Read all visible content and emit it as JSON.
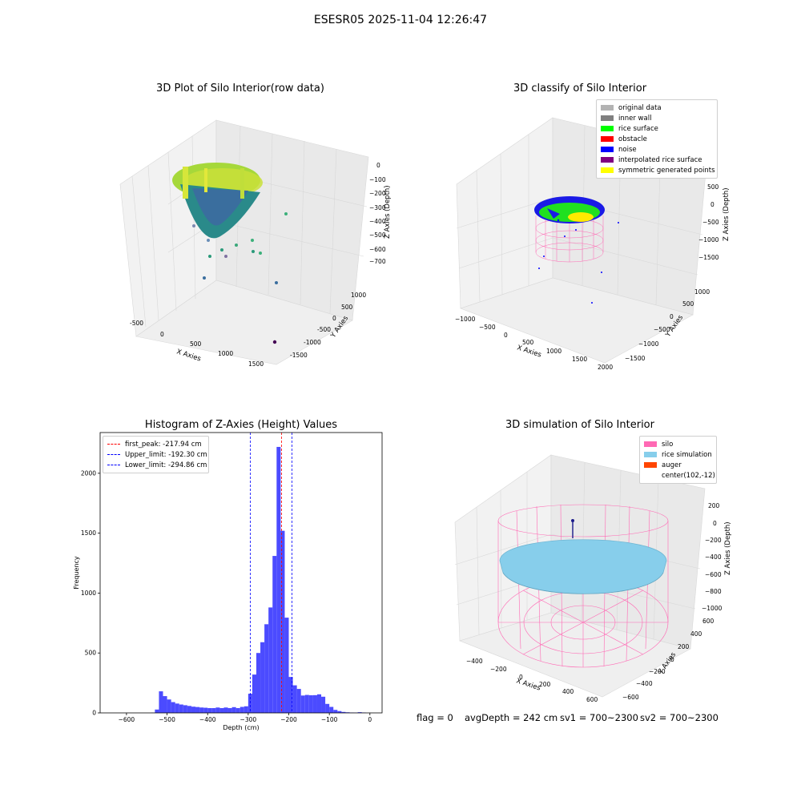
{
  "suptitle": "ESESR05 2025-11-04 12:26:47",
  "footer": {
    "flag": "flag = 0",
    "avg_depth": "avgDepth = 242 cm",
    "sv1": "sv1 = 700~2300",
    "sv2": "sv2 = 700~2300"
  },
  "colors": {
    "hist_bar": "#4b4bff",
    "first_peak": "#ff0000",
    "limits": "#0000ff",
    "silo": "#ff69b4",
    "rice": "#87ceeb",
    "auger": "#ff4500"
  },
  "plot1": {
    "title": "3D Plot of Silo Interior(row data)",
    "xlabel": "X Axies",
    "ylabel": "Y Axies",
    "zlabel": "Z Axies (Depth)",
    "xticks": [
      "-500",
      "0",
      "500",
      "1000",
      "1500"
    ],
    "yticks": [
      "1000",
      "500",
      "0",
      "-500",
      "-1000",
      "-1500"
    ],
    "zticks": [
      "0",
      "−100",
      "−200",
      "−300",
      "−400",
      "−500",
      "−600",
      "−700"
    ]
  },
  "plot2": {
    "title": "3D classify of Silo Interior",
    "xlabel": "X Axies",
    "ylabel": "Y Axies",
    "zlabel": "Z Axies (Depth)",
    "xticks": [
      "−1000",
      "−500",
      "0",
      "500",
      "1000",
      "1500",
      "2000"
    ],
    "yticks": [
      "1000",
      "500",
      "0",
      "−500",
      "−1000",
      "−1500"
    ],
    "zticks": [
      "500",
      "0",
      "−500",
      "−1000",
      "−1500"
    ],
    "legend": [
      {
        "label": "original data",
        "color": "#b3b3b3"
      },
      {
        "label": "inner wall",
        "color": "#808080"
      },
      {
        "label": "rice surface",
        "color": "#00ff00"
      },
      {
        "label": "obstacle",
        "color": "#ff0000"
      },
      {
        "label": "noise",
        "color": "#0000ff"
      },
      {
        "label": "interpolated rice surface",
        "color": "#800080"
      },
      {
        "label": "symmetric generated points",
        "color": "#ffff00"
      }
    ]
  },
  "plot4": {
    "title": "3D simulation of Silo Interior",
    "xlabel": "X Axies",
    "ylabel": "Y Axies",
    "zlabel": "Z Axies (Depth)",
    "xticks": [
      "−400",
      "−200",
      "0",
      "200",
      "400",
      "600"
    ],
    "yticks": [
      "600",
      "400",
      "200",
      "0",
      "−200",
      "−400",
      "−600"
    ],
    "zticks": [
      "200",
      "0",
      "−200",
      "−400",
      "−600",
      "−800",
      "−1000"
    ],
    "legend": [
      {
        "label": "silo",
        "color": "#ff69b4"
      },
      {
        "label": "rice simulation",
        "color": "#87ceeb"
      },
      {
        "label": "auger",
        "color": "#ff4500"
      },
      {
        "label": "center(102,-12)",
        "color": ""
      }
    ]
  },
  "chart_data": {
    "type": "bar",
    "title": "Histogram of Z-Axies (Height) Values",
    "xlabel": "Depth (cm)",
    "ylabel": "Frequency",
    "xlim": [
      -665,
      30
    ],
    "ylim": [
      0,
      2340
    ],
    "xticks": [
      -600,
      -500,
      -400,
      -300,
      -200,
      -100,
      0
    ],
    "yticks": [
      0,
      500,
      1000,
      1500,
      2000
    ],
    "bin_width": 10,
    "bins": [
      {
        "x": -535,
        "v": 2
      },
      {
        "x": -525,
        "v": 28
      },
      {
        "x": -515,
        "v": 180
      },
      {
        "x": -505,
        "v": 140
      },
      {
        "x": -495,
        "v": 112
      },
      {
        "x": -485,
        "v": 90
      },
      {
        "x": -475,
        "v": 78
      },
      {
        "x": -465,
        "v": 70
      },
      {
        "x": -455,
        "v": 64
      },
      {
        "x": -445,
        "v": 58
      },
      {
        "x": -435,
        "v": 52
      },
      {
        "x": -425,
        "v": 49
      },
      {
        "x": -415,
        "v": 45
      },
      {
        "x": -405,
        "v": 43
      },
      {
        "x": -395,
        "v": 40
      },
      {
        "x": -385,
        "v": 40
      },
      {
        "x": -375,
        "v": 45
      },
      {
        "x": -365,
        "v": 40
      },
      {
        "x": -355,
        "v": 45
      },
      {
        "x": -345,
        "v": 40
      },
      {
        "x": -335,
        "v": 48
      },
      {
        "x": -325,
        "v": 40
      },
      {
        "x": -315,
        "v": 50
      },
      {
        "x": -305,
        "v": 55
      },
      {
        "x": -295,
        "v": 160
      },
      {
        "x": -285,
        "v": 320
      },
      {
        "x": -275,
        "v": 500
      },
      {
        "x": -265,
        "v": 590
      },
      {
        "x": -255,
        "v": 740
      },
      {
        "x": -245,
        "v": 880
      },
      {
        "x": -235,
        "v": 1310
      },
      {
        "x": -225,
        "v": 2220
      },
      {
        "x": -215,
        "v": 1520
      },
      {
        "x": -205,
        "v": 795
      },
      {
        "x": -195,
        "v": 300
      },
      {
        "x": -185,
        "v": 230
      },
      {
        "x": -175,
        "v": 200
      },
      {
        "x": -165,
        "v": 145
      },
      {
        "x": -155,
        "v": 150
      },
      {
        "x": -145,
        "v": 147
      },
      {
        "x": -135,
        "v": 148
      },
      {
        "x": -125,
        "v": 155
      },
      {
        "x": -115,
        "v": 135
      },
      {
        "x": -105,
        "v": 75
      },
      {
        "x": -95,
        "v": 50
      },
      {
        "x": -85,
        "v": 25
      },
      {
        "x": -75,
        "v": 15
      },
      {
        "x": -65,
        "v": 8
      },
      {
        "x": -55,
        "v": 5
      },
      {
        "x": -45,
        "v": 3
      },
      {
        "x": -35,
        "v": 2
      },
      {
        "x": -25,
        "v": 6
      },
      {
        "x": -15,
        "v": 3
      }
    ],
    "lines": [
      {
        "name": "first_peak: -217.94 cm",
        "x": -217.94,
        "color": "#ff0000"
      },
      {
        "name": "Upper_limit: -192.30 cm",
        "x": -192.3,
        "color": "#0000ff"
      },
      {
        "name": "Lower_limit: -294.86 cm",
        "x": -294.86,
        "color": "#0000ff"
      }
    ],
    "legend": "upper left"
  }
}
